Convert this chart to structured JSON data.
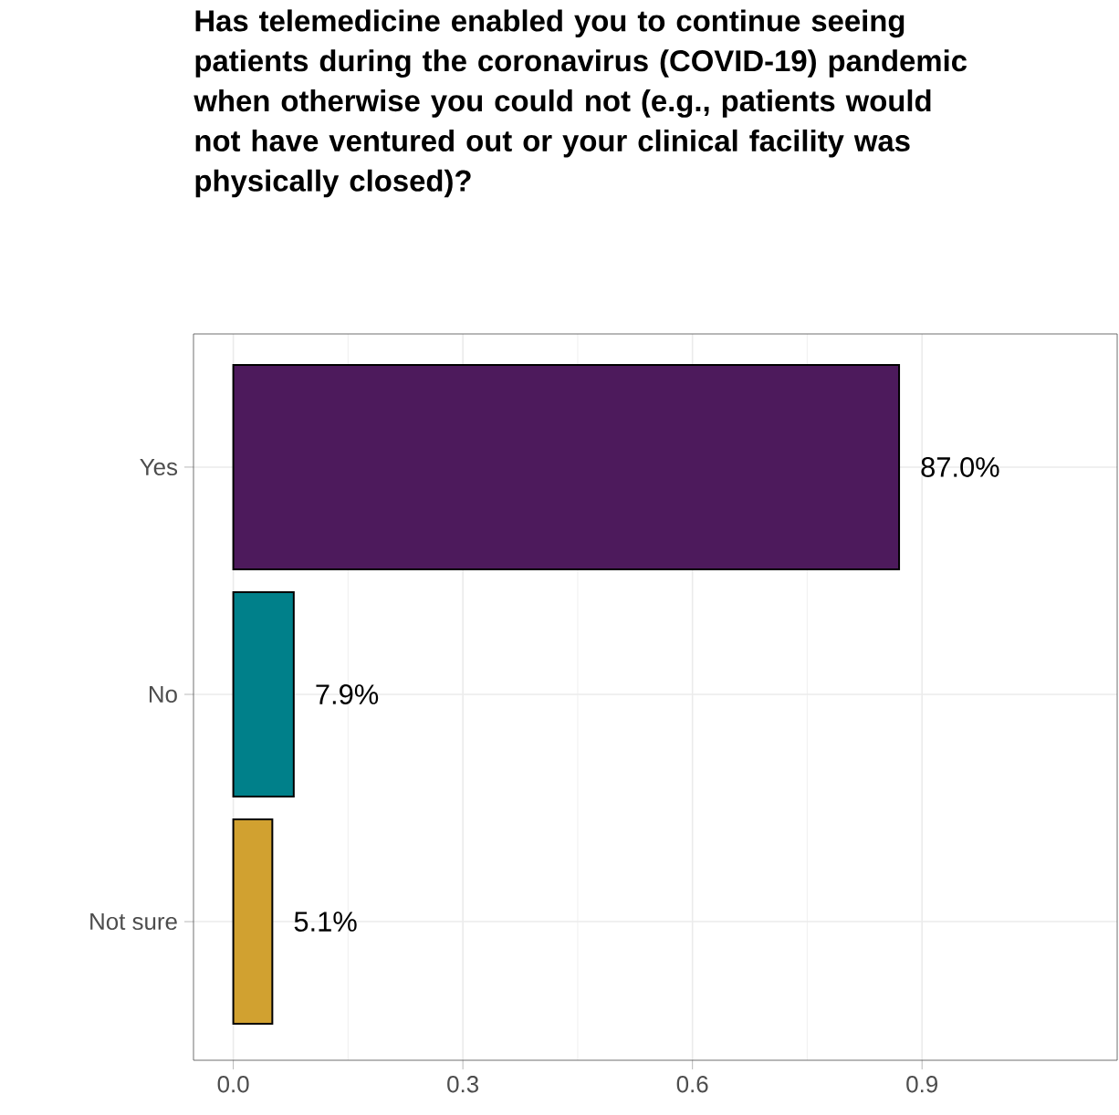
{
  "chart_data": {
    "type": "bar",
    "orientation": "horizontal",
    "title": "Has telemedicine enabled you to continue seeing patients during the coronavirus (COVID-19) pandemic when otherwise you could not (e.g., patients would not have ventured out or your clinical facility was physically closed)?",
    "categories": [
      "Yes",
      "No",
      "Not sure"
    ],
    "values": [
      0.87,
      0.079,
      0.051
    ],
    "colors": [
      "#4d1a5c",
      "#00808a",
      "#d1a130"
    ],
    "value_labels": [
      "87.0%",
      "7.9%",
      "5.1%"
    ],
    "xlim": [
      -0.052,
      1.155
    ],
    "xticks": [
      {
        "value": 0,
        "label": "0.0"
      },
      0.3,
      0.6,
      0.9
    ],
    "grid": true
  }
}
